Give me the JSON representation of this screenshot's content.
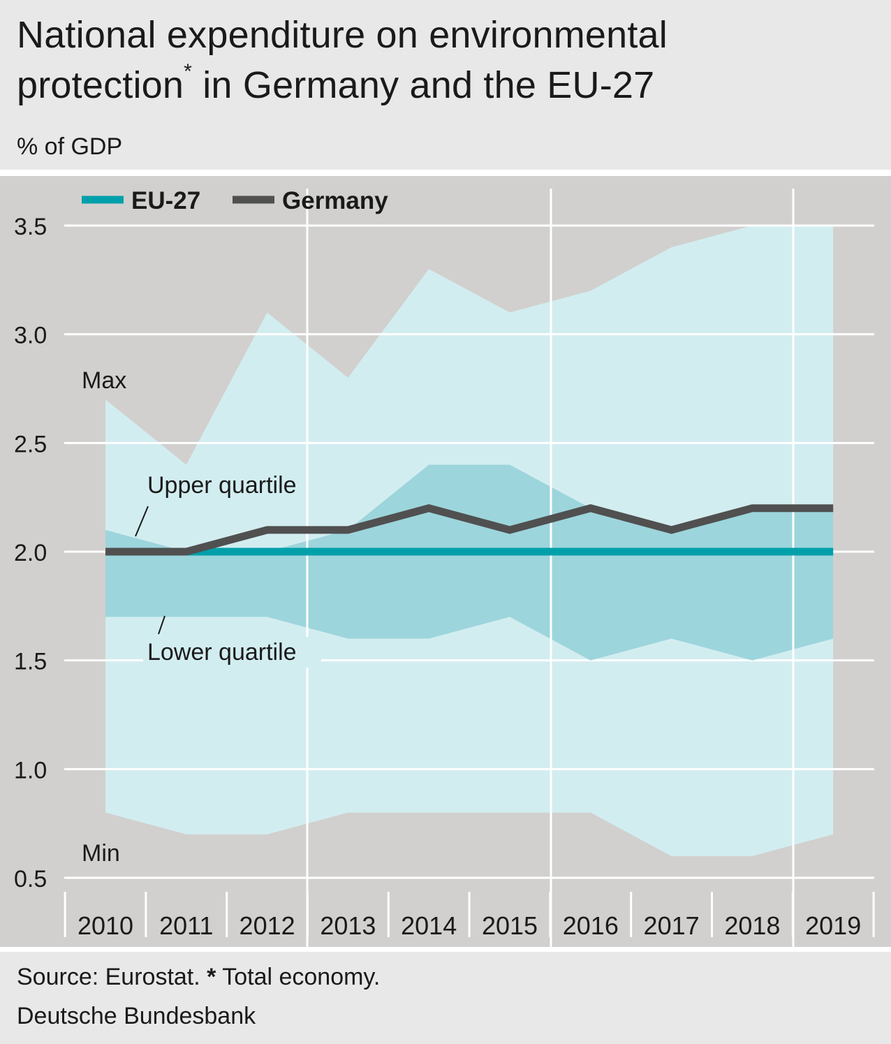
{
  "header": {
    "title_line1": "National expenditure on environmental",
    "title_line2_pre": "protection",
    "title_sup": "*",
    "title_line2_post": " in Germany and the EU-27",
    "unit": "% of GDP"
  },
  "footer": {
    "source_pre": "Source: Eurostat. ",
    "source_star": "*",
    "source_post": " Total economy.",
    "publisher": "Deutsche Bundesbank"
  },
  "colors": {
    "plot_background": "#d1d0ce",
    "minmax_band": "#d2edf0",
    "quartile_band": "#9dd5dc",
    "eu27": "#00a0ab",
    "germany": "#505050",
    "gridline": "#ffffff"
  },
  "chart_data": {
    "type": "area",
    "title": "National expenditure on environmental protection* in Germany and the EU-27",
    "ylabel": "% of GDP",
    "ylim": [
      0.5,
      3.5
    ],
    "yticks": [
      0.5,
      1.0,
      1.5,
      2.0,
      2.5,
      3.0,
      3.5
    ],
    "ytick_labels": [
      "0.5",
      "1.0",
      "1.5",
      "2.0",
      "2.5",
      "3.0",
      "3.5"
    ],
    "categories": [
      "2010",
      "2011",
      "2012",
      "2013",
      "2014",
      "2015",
      "2016",
      "2017",
      "2018",
      "2019"
    ],
    "bands": {
      "max": [
        2.7,
        2.4,
        3.1,
        2.8,
        3.3,
        3.1,
        3.2,
        3.4,
        3.5,
        3.5
      ],
      "upper_quartile": [
        2.1,
        2.0,
        2.0,
        2.1,
        2.4,
        2.4,
        2.2,
        2.1,
        2.2,
        2.2
      ],
      "lower_quartile": [
        1.7,
        1.7,
        1.7,
        1.6,
        1.6,
        1.7,
        1.5,
        1.6,
        1.5,
        1.6
      ],
      "min": [
        0.8,
        0.7,
        0.7,
        0.8,
        0.8,
        0.8,
        0.8,
        0.6,
        0.6,
        0.7
      ]
    },
    "series": [
      {
        "name": "EU-27",
        "values": [
          2.0,
          2.0,
          2.0,
          2.0,
          2.0,
          2.0,
          2.0,
          2.0,
          2.0,
          2.0
        ]
      },
      {
        "name": "Germany",
        "values": [
          2.0,
          2.0,
          2.1,
          2.1,
          2.2,
          2.1,
          2.2,
          2.1,
          2.2,
          2.2
        ]
      }
    ],
    "annotations": {
      "max": "Max",
      "min": "Min",
      "upper_quartile": "Upper quartile",
      "lower_quartile": "Lower quartile"
    },
    "legend": "top-left",
    "grid": true
  }
}
